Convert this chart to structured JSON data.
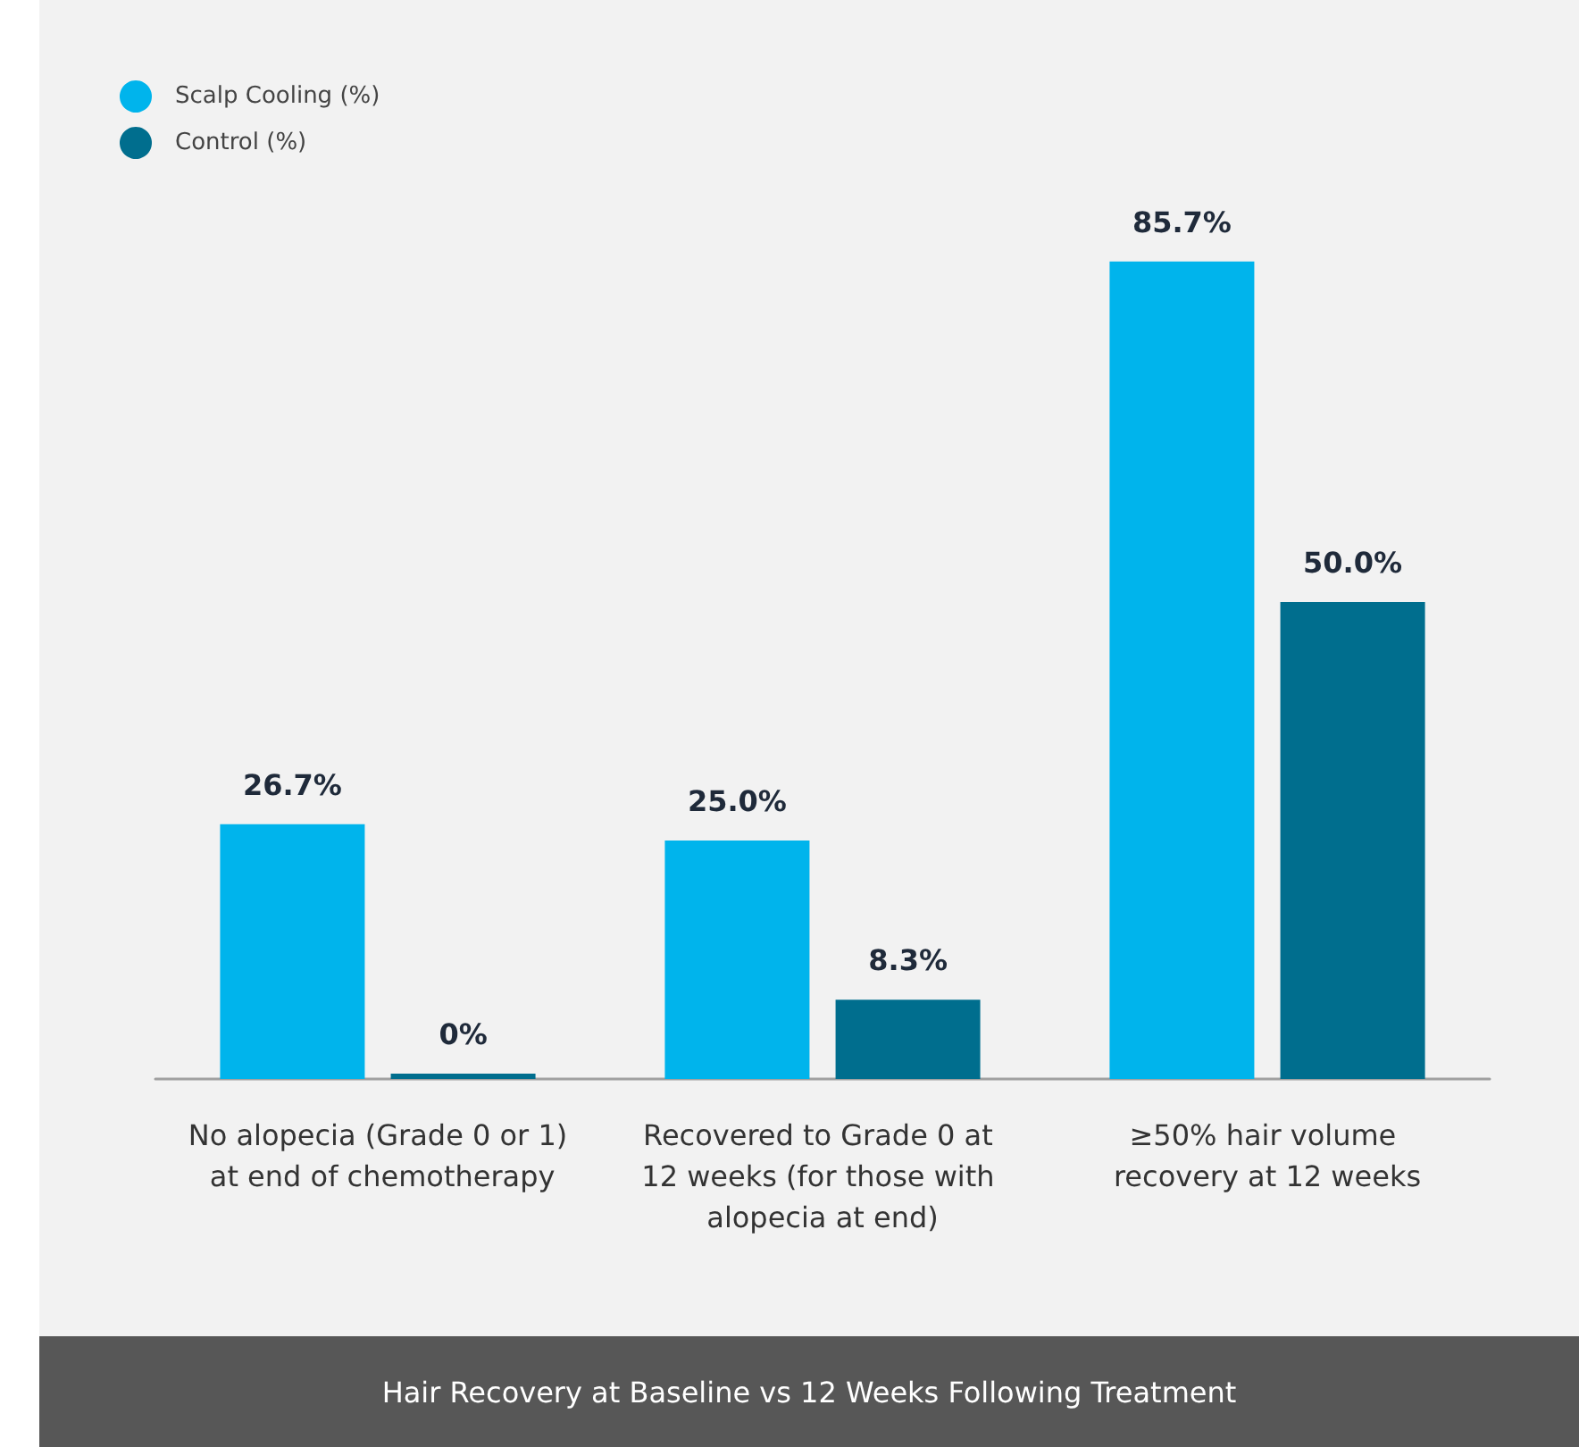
{
  "chart_data": {
    "type": "bar",
    "title": "Hair Recovery at Baseline vs 12 Weeks Following Treatment",
    "categories": [
      "No alopecia (Grade 0 or 1) at end of chemotherapy",
      "Recovered to Grade 0 at 12 weeks (for those with alopecia at end)",
      "≥50% hair volume recovery at 12 weeks"
    ],
    "series": [
      {
        "name": "Scalp Cooling (%)",
        "color": "#00b4ec",
        "values": [
          26.7,
          25.0,
          85.7
        ],
        "value_labels": [
          "26.7%",
          "25.0%",
          "85.7%"
        ]
      },
      {
        "name": "Control (%)",
        "color": "#006e8e",
        "values": [
          0,
          8.3,
          50.0
        ],
        "value_labels": [
          "0%",
          "8.3%",
          "50.0%"
        ]
      }
    ],
    "legend": "top left"
  }
}
